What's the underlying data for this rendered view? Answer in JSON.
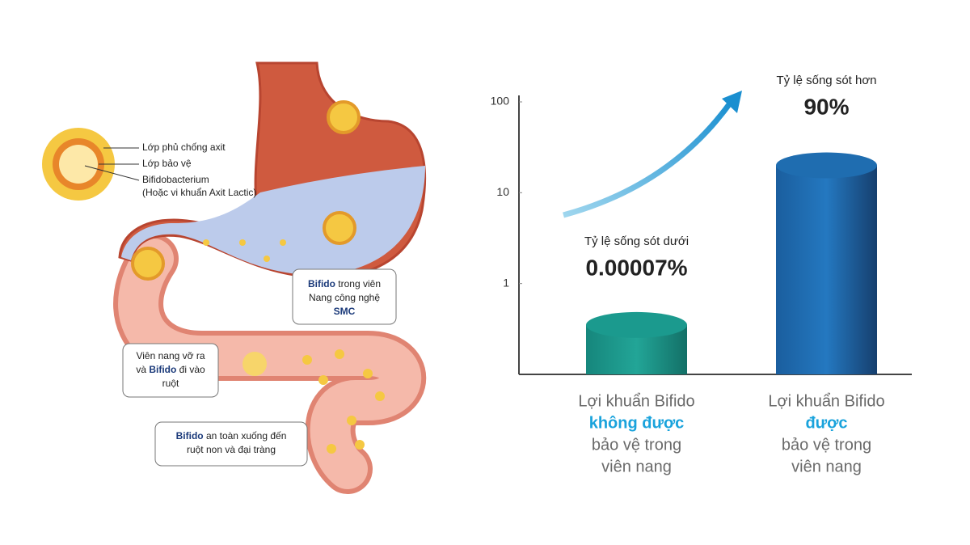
{
  "diagram": {
    "inset_labels": [
      "Lớp phủ chống axit",
      "Lớp bảo vệ",
      "Bifidobacterium",
      "(Hoặc vi khuẩn Axit Lactic)"
    ],
    "callouts": [
      [
        [
          "Bifido",
          " trong viên"
        ],
        [
          "Nang công nghệ"
        ],
        [
          "SMC"
        ]
      ],
      [
        [
          "Viên nang vỡ ra"
        ],
        [
          "và ",
          "Bifido",
          " đi vào"
        ],
        [
          "ruột"
        ]
      ],
      [
        [
          "Bifido",
          " an toàn xuống đến"
        ],
        [
          "ruột non và đại tràng"
        ]
      ]
    ]
  },
  "chart_data": {
    "type": "bar",
    "log_scale": true,
    "categories": [
      [
        "Lợi khuẩn Bifido",
        "không được",
        "bảo vệ trong",
        "viên nang"
      ],
      [
        "Lợi khuẩn Bifido",
        "được",
        "bảo vệ trong",
        "viên nang"
      ]
    ],
    "values": [
      0.35,
      20
    ],
    "colors": [
      "#1b9a8e",
      "#1f6db0"
    ],
    "ylim": [
      0.1,
      100
    ],
    "yticks": [
      1,
      10,
      100
    ],
    "annotations": [
      {
        "text": "Tỷ lệ sống sót dưới",
        "value_text": "0.00007%",
        "color": "#e0252a"
      },
      {
        "text": "Tỷ lệ sống sót hơn",
        "value_text": "90%",
        "color": "#1aa3dc"
      }
    ]
  }
}
